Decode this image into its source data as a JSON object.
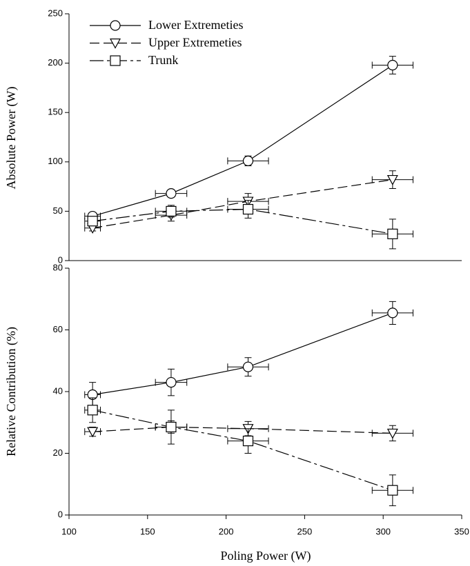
{
  "chart_data": [
    {
      "type": "line",
      "ylabel": "Absolute Power (W)",
      "x": [
        115,
        165,
        214,
        306
      ],
      "xerr": [
        5,
        10,
        13,
        13
      ],
      "xlim": [
        100,
        350
      ],
      "ylim": [
        0,
        250
      ],
      "yticks": [
        0,
        50,
        100,
        150,
        200,
        250
      ],
      "legend": "upper left",
      "series": [
        {
          "name": "Lower Extremeties",
          "color": "#000000",
          "marker": "circle",
          "dash": "solid",
          "values": [
            45,
            68,
            101,
            198
          ],
          "yerr": [
            3,
            3,
            5,
            9
          ]
        },
        {
          "name": "Upper Extremeties",
          "color": "#000000",
          "marker": "triangle-down",
          "dash": "dashed",
          "values": [
            33,
            46,
            60,
            82
          ],
          "yerr": [
            3,
            6,
            8,
            9
          ]
        },
        {
          "name": "Trunk",
          "color": "#000000",
          "marker": "square",
          "dash": "dashdot",
          "values": [
            40,
            50,
            52,
            27
          ],
          "yerr": [
            4,
            6,
            9,
            15
          ]
        }
      ]
    },
    {
      "type": "line",
      "ylabel": "Relative Contribution (%)",
      "xlabel": "Poling Power (W)",
      "x": [
        115,
        165,
        214,
        306
      ],
      "xerr": [
        5,
        10,
        13,
        13
      ],
      "xlim": [
        100,
        350
      ],
      "xticks": [
        100,
        150,
        200,
        250,
        300,
        350
      ],
      "ylim": [
        0,
        80
      ],
      "yticks": [
        0,
        20,
        40,
        60,
        80
      ],
      "series": [
        {
          "color": "#000000",
          "marker": "circle",
          "dash": "solid",
          "values": [
            39,
            43,
            48,
            65.5
          ],
          "yerr": [
            4,
            4.3,
            3,
            3.7
          ]
        },
        {
          "color": "#000000",
          "marker": "triangle-down",
          "dash": "dashed",
          "values": [
            27,
            28.5,
            28,
            26.5
          ],
          "yerr": [
            1.5,
            2,
            2.3,
            2.5
          ]
        },
        {
          "color": "#000000",
          "marker": "square",
          "dash": "dashdot",
          "values": [
            34,
            28.5,
            24,
            8
          ],
          "yerr": [
            4,
            5.5,
            4,
            5
          ]
        }
      ]
    }
  ]
}
